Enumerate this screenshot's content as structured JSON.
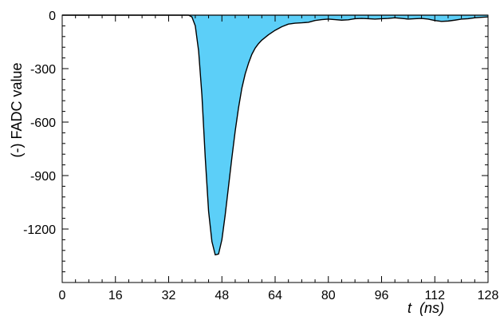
{
  "colors": {
    "fill": "#5ccff8",
    "line": "#000000",
    "axis": "#000000",
    "background": "#ffffff"
  },
  "chart_data": {
    "type": "area",
    "title": "",
    "xlabel": "t  (ns)",
    "ylabel": "(-) FADC value",
    "xlim": [
      0,
      128
    ],
    "ylim": [
      -1500,
      0
    ],
    "x_ticks": [
      0,
      16,
      32,
      48,
      64,
      80,
      96,
      112,
      128
    ],
    "y_ticks": [
      0,
      -300,
      -600,
      -900,
      -1200
    ],
    "grid": false,
    "legend": "none",
    "series": [
      {
        "x": [
          0,
          36,
          38,
          39,
          40,
          41,
          42,
          43,
          44,
          45,
          46,
          47,
          48,
          49,
          50,
          51,
          52,
          53,
          54,
          55,
          56,
          57,
          58,
          59,
          60,
          62,
          64,
          66,
          68,
          70,
          72,
          74,
          76,
          78,
          80,
          82,
          84,
          86,
          88,
          90,
          92,
          94,
          96,
          98,
          100,
          102,
          104,
          106,
          108,
          110,
          112,
          114,
          116,
          118,
          120,
          122,
          124,
          126,
          128
        ],
        "y": [
          0,
          0,
          0,
          -10,
          -60,
          -200,
          -450,
          -800,
          -1100,
          -1270,
          -1345,
          -1340,
          -1260,
          -1120,
          -960,
          -800,
          -650,
          -520,
          -410,
          -330,
          -270,
          -220,
          -185,
          -160,
          -140,
          -110,
          -85,
          -65,
          -50,
          -45,
          -43,
          -40,
          -30,
          -25,
          -22,
          -25,
          -28,
          -26,
          -20,
          -18,
          -20,
          -22,
          -20,
          -18,
          -15,
          -18,
          -22,
          -20,
          -18,
          -22,
          -30,
          -35,
          -33,
          -28,
          -22,
          -20,
          -15,
          -12,
          -10
        ]
      }
    ]
  }
}
